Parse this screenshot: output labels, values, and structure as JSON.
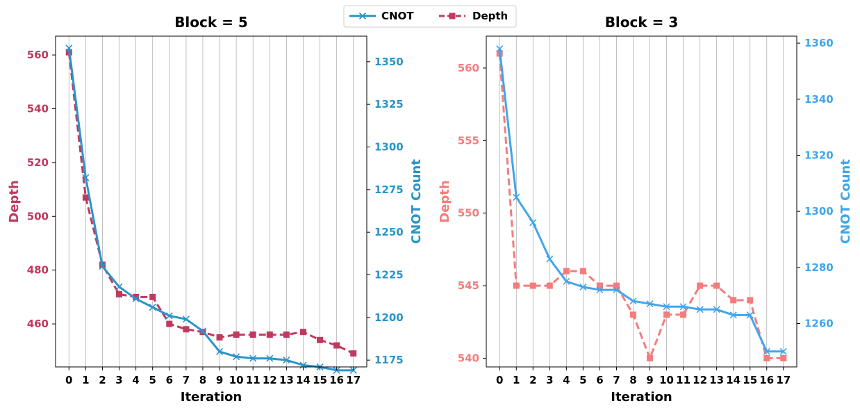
{
  "legend": {
    "entries": [
      {
        "label": "CNOT",
        "color": "#2b94c9",
        "marker": "x",
        "style": "solid"
      },
      {
        "label": "Depth",
        "color": "#c0395f",
        "marker": "s",
        "style": "dashed"
      }
    ],
    "placement": "top-center"
  },
  "chart_data": [
    {
      "type": "line",
      "title": "Block = 5",
      "xlabel": "Iteration",
      "ylabel_left": "Depth",
      "ylabel_right": "CNOT Count",
      "x": [
        0,
        1,
        2,
        3,
        4,
        5,
        6,
        7,
        8,
        9,
        10,
        11,
        12,
        13,
        14,
        15,
        16,
        17
      ],
      "xlim": [
        -0.8,
        17.8
      ],
      "ylim_left": [
        444,
        567
      ],
      "ylim_right": [
        1171,
        1365
      ],
      "yticks_left": [
        460,
        480,
        500,
        520,
        540,
        560
      ],
      "yticks_right": [
        1175,
        1200,
        1225,
        1250,
        1275,
        1300,
        1325,
        1350
      ],
      "grid": "x-only",
      "colors": {
        "depth": "#c0395f",
        "cnot": "#2b94c9"
      },
      "series": [
        {
          "name": "Depth",
          "axis": "left",
          "values": [
            561,
            507,
            482,
            471,
            470,
            470,
            460,
            458,
            457,
            455,
            456,
            456,
            456,
            456,
            457,
            454,
            452,
            449
          ]
        },
        {
          "name": "CNOT",
          "axis": "right",
          "values": [
            1358,
            1282,
            1230,
            1218,
            1211,
            1206,
            1201,
            1199,
            1192,
            1180,
            1177,
            1176,
            1176,
            1175,
            1172,
            1171,
            1169,
            1169
          ]
        }
      ]
    },
    {
      "type": "line",
      "title": "Block = 3",
      "xlabel": "Iteration",
      "ylabel_left": "Depth",
      "ylabel_right": "CNOT Count",
      "x": [
        0,
        1,
        2,
        3,
        4,
        5,
        6,
        7,
        8,
        9,
        10,
        11,
        12,
        13,
        14,
        15,
        16,
        17
      ],
      "xlim": [
        -0.8,
        17.8
      ],
      "ylim_left": [
        539.4,
        562.2
      ],
      "ylim_right": [
        1244.5,
        1362.5
      ],
      "yticks_left": [
        540,
        545,
        550,
        555,
        560
      ],
      "yticks_right": [
        1260,
        1280,
        1300,
        1320,
        1340,
        1360
      ],
      "grid": "x-only",
      "colors": {
        "depth": "#f47c7c",
        "cnot": "#42a5eb"
      },
      "series": [
        {
          "name": "Depth",
          "axis": "left",
          "values": [
            561,
            545,
            545,
            545,
            546,
            546,
            545,
            545,
            543,
            540,
            543,
            543,
            545,
            545,
            544,
            544,
            540,
            540
          ]
        },
        {
          "name": "CNOT",
          "axis": "right",
          "values": [
            1358,
            1305,
            1296,
            1283,
            1275,
            1273,
            1272,
            1272,
            1268,
            1267,
            1266,
            1266,
            1265,
            1265,
            1263,
            1263,
            1250,
            1250
          ]
        }
      ]
    }
  ]
}
